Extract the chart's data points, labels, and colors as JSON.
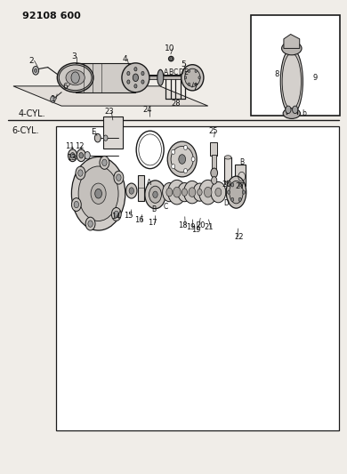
{
  "title": "92108 600",
  "label_4cyl": "4-CYL.",
  "label_6cyl": "6-CYL.",
  "bg_color": "#f0ede8",
  "line_color": "#1a1a1a",
  "text_color": "#111111",
  "fig_width": 3.9,
  "fig_height": 5.33
}
